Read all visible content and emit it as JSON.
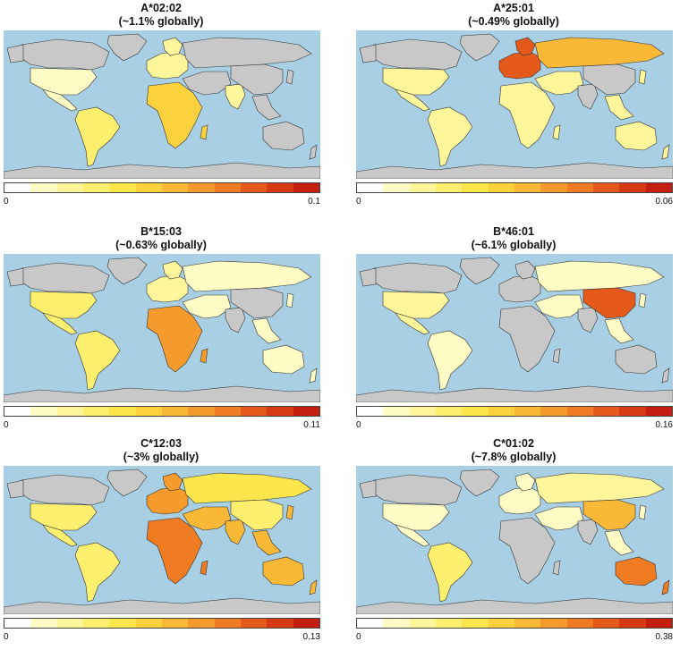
{
  "panels": [
    {
      "title": "A*02:02",
      "subtitle": "(~1.1% globally)",
      "min": "0",
      "max": "0.1"
    },
    {
      "title": "A*25:01",
      "subtitle": "(~0.49% globally)",
      "min": "0",
      "max": "0.06"
    },
    {
      "title": "B*15:03",
      "subtitle": "(~0.63% globally)",
      "min": "0",
      "max": "0.11"
    },
    {
      "title": "B*46:01",
      "subtitle": "(~6.1% globally)",
      "min": "0",
      "max": "0.16"
    },
    {
      "title": "C*12:03",
      "subtitle": "(~3% globally)",
      "min": "0",
      "max": "0.13"
    },
    {
      "title": "C*01:02",
      "subtitle": "(~7.8% globally)",
      "min": "0",
      "max": "0.38"
    }
  ],
  "colors": {
    "ocean": "#a8cfe3",
    "no_data": "#c8c8c8",
    "scale": [
      "#ffffff",
      "#fffbc4",
      "#fff59a",
      "#ffef6e",
      "#fde54c",
      "#fcd13e",
      "#f9b836",
      "#f59a2c",
      "#ef7b23",
      "#e55a1b",
      "#d63a14",
      "#c41e10"
    ]
  },
  "highlights": [
    {
      "na": 1,
      "sa": 3,
      "eu": 2,
      "ru": 0,
      "af": 5,
      "as": 0,
      "in": 2,
      "cn": 0,
      "au": 0
    },
    {
      "na": 2,
      "sa": 2,
      "eu": 9,
      "ru": 6,
      "af": 2,
      "as": 2,
      "in": 0,
      "cn": 0,
      "au": 2
    },
    {
      "na": 3,
      "sa": 3,
      "eu": 2,
      "ru": 1,
      "af": 7,
      "as": 1,
      "in": 0,
      "cn": 0,
      "au": 1
    },
    {
      "na": 2,
      "sa": 1,
      "eu": 0,
      "ru": 1,
      "af": 0,
      "as": 1,
      "in": 0,
      "cn": 9,
      "au": 0
    },
    {
      "na": 3,
      "sa": 3,
      "eu": 7,
      "ru": 4,
      "af": 8,
      "as": 6,
      "in": 6,
      "cn": 3,
      "au": 6
    },
    {
      "na": 1,
      "sa": 3,
      "eu": 1,
      "ru": 2,
      "af": 0,
      "as": 1,
      "in": 0,
      "cn": 6,
      "au": 8
    }
  ]
}
